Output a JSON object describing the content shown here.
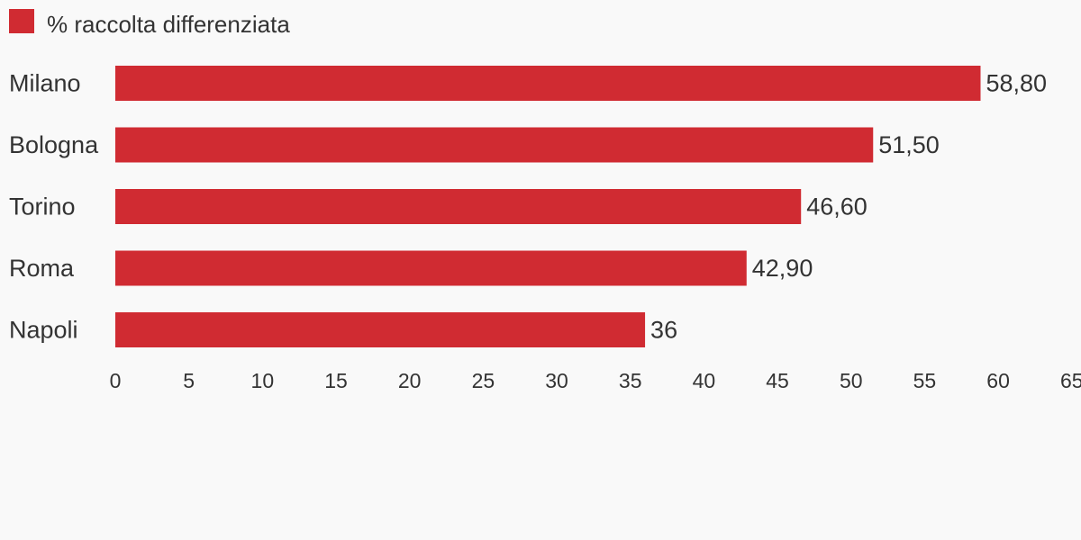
{
  "chart_data": {
    "type": "bar",
    "orientation": "horizontal",
    "categories": [
      "Milano",
      "Bologna",
      "Torino",
      "Roma",
      "Napoli"
    ],
    "series": [
      {
        "name": "% raccolta differenziata",
        "values": [
          58.8,
          51.5,
          46.6,
          42.9,
          36
        ],
        "value_labels": [
          "58,80",
          "51,50",
          "46,60",
          "42,90",
          "36"
        ]
      }
    ],
    "xlim": [
      0,
      65
    ],
    "x_ticks": [
      0,
      5,
      10,
      15,
      20,
      25,
      30,
      35,
      40,
      45,
      50,
      55,
      60,
      65
    ],
    "title": "",
    "xlabel": "",
    "ylabel": "",
    "grid": false,
    "legend_placement": "top-left",
    "colors": {
      "bar": "#d02b32",
      "text": "#333333",
      "background": "#f9f9f9"
    }
  }
}
